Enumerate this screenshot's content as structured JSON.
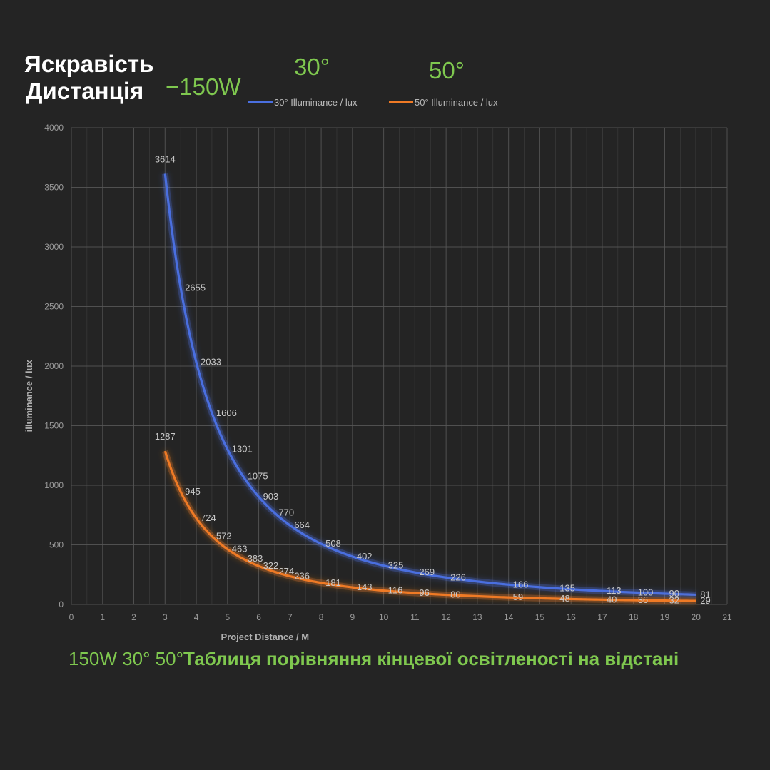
{
  "header": {
    "line1": "Яскравість",
    "line2": "Дистанція",
    "power": "−150W",
    "angle1": "30°",
    "angle2": "50°"
  },
  "footer": {
    "prefix": "150W 30° 50°",
    "title": "Таблиця порівняння кінцевої освітленості на відстані"
  },
  "colors": {
    "background": "#242424",
    "grid": "#555555",
    "series_30": "#4a6fe0",
    "series_50": "#ef7a25",
    "accent_green": "#7fc84f"
  },
  "chart_data": {
    "type": "line",
    "xlabel": "Project Distance / M",
    "ylabel": "illuminance / lux",
    "xlim": [
      0,
      21
    ],
    "ylim": [
      0,
      4000
    ],
    "x_ticks": [
      "0",
      "1",
      "2",
      "3",
      "4",
      "5",
      "6",
      "7",
      "8",
      "9",
      "10",
      "11",
      "12",
      "13",
      "14",
      "15",
      "16",
      "17",
      "18",
      "19",
      "20",
      "21"
    ],
    "y_ticks": [
      "0",
      "500",
      "1000",
      "1500",
      "2000",
      "2500",
      "3000",
      "3500",
      "4000"
    ],
    "grid": true,
    "legend_position": "top",
    "series": [
      {
        "name": "30° Illuminance / lux",
        "color": "#4a6fe0",
        "x": [
          3,
          3.5,
          4,
          4.5,
          5,
          5.5,
          6,
          6.5,
          7,
          8,
          9,
          10,
          11,
          12,
          14,
          15.5,
          17,
          18,
          19,
          20
        ],
        "y": [
          3614,
          2655,
          2033,
          1606,
          1301,
          1075,
          903,
          770,
          664,
          508,
          402,
          325,
          269,
          226,
          166,
          135,
          113,
          100,
          90,
          81
        ]
      },
      {
        "name": "50° Illuminance / lux",
        "color": "#ef7a25",
        "x": [
          3,
          3.5,
          4,
          4.5,
          5,
          5.5,
          6,
          6.5,
          7,
          8,
          9,
          10,
          11,
          12,
          14,
          15.5,
          17,
          18,
          19,
          20
        ],
        "y": [
          1287,
          945,
          724,
          572,
          463,
          383,
          322,
          274,
          236,
          181,
          143,
          116,
          96,
          80,
          59,
          48,
          40,
          36,
          32,
          29
        ]
      }
    ]
  }
}
